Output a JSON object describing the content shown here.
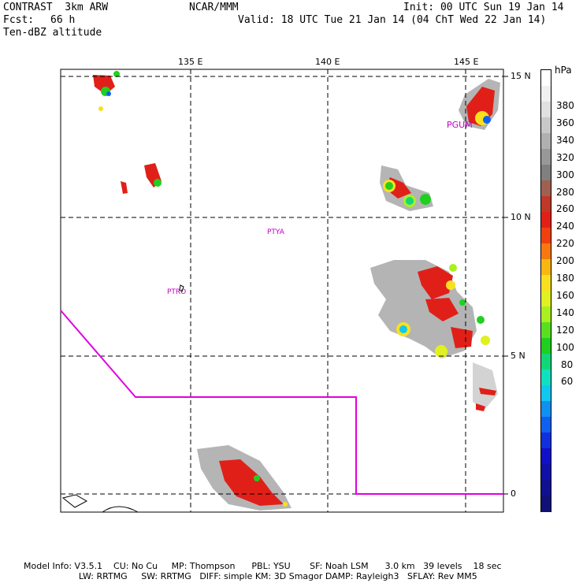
{
  "header": {
    "model": "CONTRAST  3km ARW",
    "org": "NCAR/MMM",
    "init": "Init: 00 UTC Sun 19 Jan 14",
    "fcst_label": "Fcst:",
    "fcst_value": "66 h",
    "valid": "Valid: 18 UTC Tue 21 Jan 14 (04 ChT Wed 22 Jan 14)",
    "field": "Ten-dBZ altitude"
  },
  "map": {
    "lon_ticks": [
      "135 E",
      "140 E",
      "145 E"
    ],
    "lat_ticks": [
      "15 N",
      "10 N",
      "5 N",
      "0"
    ],
    "stations": [
      "PGUM",
      "PTYA",
      "PTRO"
    ],
    "boundary_color": "#e000e0"
  },
  "colorbar": {
    "unit": "hPa",
    "labels": [
      "380",
      "360",
      "340",
      "320",
      "300",
      "280",
      "260",
      "240",
      "220",
      "200",
      "180",
      "160",
      "140",
      "120",
      "100",
      "80",
      "60"
    ],
    "colors": [
      "#ffffff",
      "#f0f0f0",
      "#e0e0e0",
      "#c8c8c8",
      "#b0b0b0",
      "#989898",
      "#808080",
      "#a06050",
      "#c03828",
      "#e02018",
      "#f04010",
      "#f87810",
      "#f8b810",
      "#f8e020",
      "#e0f020",
      "#a8f020",
      "#58e020",
      "#20d020",
      "#10d878",
      "#10e0c0",
      "#10c8f0",
      "#1090f0",
      "#1060f0",
      "#1030e0",
      "#1010c8",
      "#1010a8",
      "#101090",
      "#101078"
    ]
  },
  "footer": {
    "line1": "Model Info: V3.5.1    CU: No Cu     MP: Thompson      PBL: YSU       SF: Noah LSM      3.0 km   39 levels    18 sec",
    "line2": "                    LW: RRTMG     SW: RRTMG   DIFF: simple KM: 3D Smagor DAMP: Rayleigh3   SFLAY: Rev MM5"
  }
}
